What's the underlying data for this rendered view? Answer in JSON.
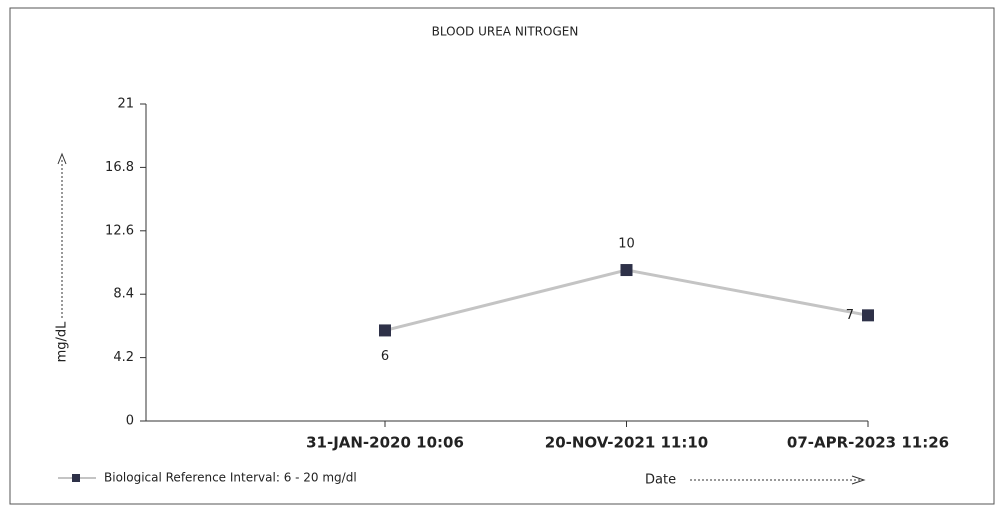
{
  "chart_data": {
    "type": "line",
    "title": "BLOOD UREA NITROGEN",
    "y_label": "mg/dL",
    "x_label": "Date",
    "categories": [
      "31-JAN-2020 10:06",
      "20-NOV-2021 11:10",
      "07-APR-2023 11:26"
    ],
    "series": [
      {
        "name": "Biological Reference Interval: 6 - 20 mg/dl",
        "color": "#c4c4c4",
        "marker_color": "#2e3148",
        "values": [
          6,
          10,
          7
        ]
      }
    ],
    "ylim": [
      0,
      21
    ],
    "yticks": [
      0,
      4.2,
      8.4,
      12.6,
      16.8,
      21
    ]
  }
}
